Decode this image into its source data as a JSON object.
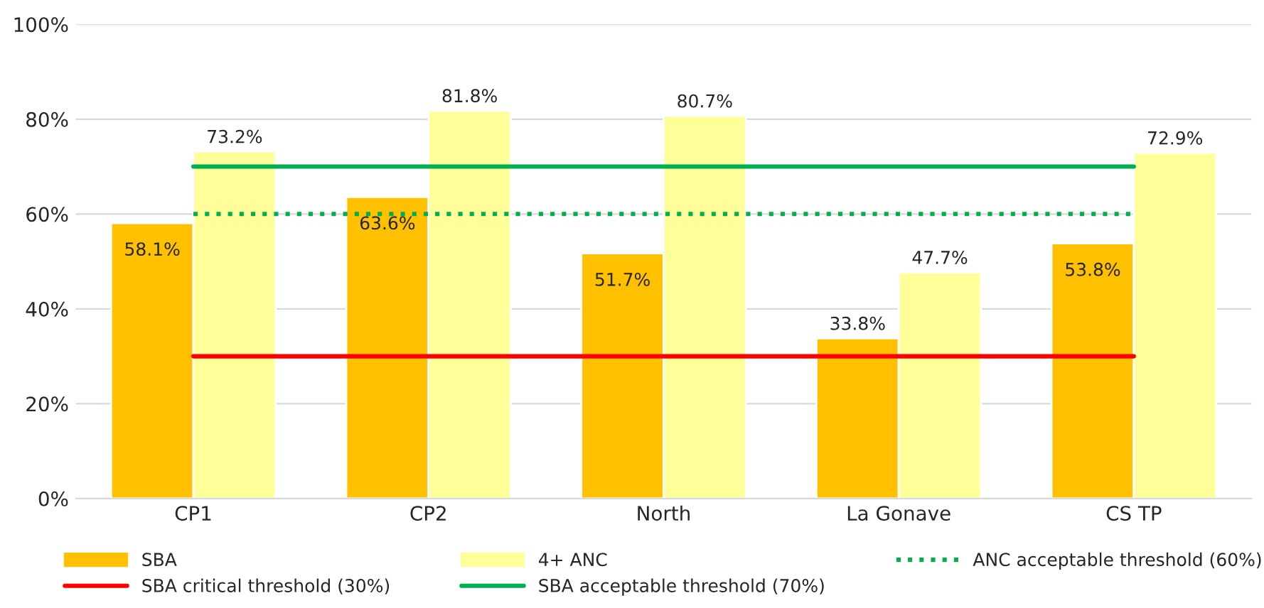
{
  "chart_data": {
    "type": "bar",
    "categories": [
      "CP1",
      "CP2",
      "North",
      "La Gonave",
      "CS TP"
    ],
    "series": [
      {
        "name": "SBA",
        "color": "#ffc000",
        "values": [
          58.1,
          63.6,
          51.7,
          33.8,
          53.8
        ],
        "value_labels": [
          "58.1%",
          "63.6%",
          "51.7%",
          "33.8%",
          "53.8%"
        ]
      },
      {
        "name": "4+ ANC",
        "color": "#ffff99",
        "values": [
          73.2,
          81.8,
          80.7,
          47.7,
          72.9
        ],
        "value_labels": [
          "73.2%",
          "81.8%",
          "80.7%",
          "47.7%",
          "72.9%"
        ]
      },
      {
        "name": "ANC acceptable threshold (60%)",
        "type": "line",
        "line_style": "dotted",
        "color": "#00b050",
        "values": [
          60,
          60,
          60,
          60,
          60
        ]
      },
      {
        "name": "SBA critical threshold (30%)",
        "type": "line",
        "line_style": "solid",
        "color": "#ff0000",
        "values": [
          30,
          30,
          30,
          30,
          30
        ]
      },
      {
        "name": "SBA acceptable threshold (70%)",
        "type": "line",
        "line_style": "solid",
        "color": "#00b050",
        "values": [
          70,
          70,
          70,
          70,
          70
        ]
      }
    ],
    "ylim": [
      0,
      100
    ],
    "yticks": [
      {
        "value": 0,
        "label": "0%"
      },
      {
        "value": 20,
        "label": "20%"
      },
      {
        "value": 40,
        "label": "40%"
      },
      {
        "value": 60,
        "label": "60%"
      },
      {
        "value": 80,
        "label": "80%"
      },
      {
        "value": 100,
        "label": "100%"
      }
    ],
    "grid": "y",
    "legend": "bottom"
  }
}
